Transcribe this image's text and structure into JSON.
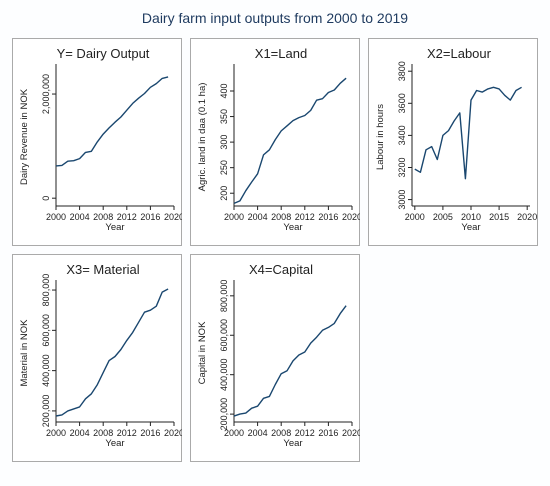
{
  "title": "Dairy farm input outputs from 2000 to 2019",
  "chart_data": [
    {
      "type": "line",
      "title": "Y= Dairy Output",
      "xlabel": "Year",
      "ylabel": "Dairy Revenue in NOK",
      "xlim": [
        2000,
        2020
      ],
      "ylim": [
        -150000,
        2500000
      ],
      "xticks": [
        "2000",
        "2004",
        "2008",
        "2012",
        "2016",
        "2020"
      ],
      "yticks": [
        {
          "v": 0,
          "label": "0"
        },
        {
          "v": 2000000,
          "label": "2,000,000"
        }
      ],
      "x": [
        2000,
        2001,
        2002,
        2003,
        2004,
        2005,
        2006,
        2007,
        2008,
        2009,
        2010,
        2011,
        2012,
        2013,
        2014,
        2015,
        2016,
        2017,
        2018,
        2019
      ],
      "values": [
        620000,
        630000,
        710000,
        720000,
        760000,
        880000,
        900000,
        1080000,
        1230000,
        1350000,
        1460000,
        1560000,
        1690000,
        1820000,
        1920000,
        2010000,
        2130000,
        2200000,
        2300000,
        2330000
      ]
    },
    {
      "type": "line",
      "title": "X1=Land",
      "xlabel": "Year",
      "ylabel": "Agric. land in daa (0.1 ha)",
      "xlim": [
        2000,
        2020
      ],
      "ylim": [
        175,
        445
      ],
      "xticks": [
        "2000",
        "2004",
        "2008",
        "2012",
        "2016",
        "2020"
      ],
      "yticks": [
        {
          "v": 200,
          "label": "200"
        },
        {
          "v": 250,
          "label": "250"
        },
        {
          "v": 300,
          "label": "300"
        },
        {
          "v": 350,
          "label": "350"
        },
        {
          "v": 400,
          "label": "400"
        }
      ],
      "x": [
        2000,
        2001,
        2002,
        2003,
        2004,
        2005,
        2006,
        2007,
        2008,
        2009,
        2010,
        2011,
        2012,
        2013,
        2014,
        2015,
        2016,
        2017,
        2018,
        2019
      ],
      "values": [
        180,
        185,
        205,
        222,
        238,
        275,
        285,
        305,
        322,
        332,
        342,
        348,
        352,
        362,
        382,
        385,
        397,
        402,
        415,
        425
      ]
    },
    {
      "type": "line",
      "title": "X2=Labour",
      "xlabel": "Year",
      "ylabel": "Labour in hours",
      "xlim": [
        1999.5,
        2020.5
      ],
      "ylim": [
        2960,
        3820
      ],
      "xticks": [
        "2000",
        "2005",
        "2010",
        "2015",
        "2020"
      ],
      "yticks": [
        {
          "v": 3000,
          "label": "3000"
        },
        {
          "v": 3200,
          "label": "3200"
        },
        {
          "v": 3400,
          "label": "3400"
        },
        {
          "v": 3600,
          "label": "3600"
        },
        {
          "v": 3800,
          "label": "3800"
        }
      ],
      "x": [
        2000,
        2001,
        2002,
        2003,
        2004,
        2005,
        2006,
        2007,
        2008,
        2009,
        2010,
        2011,
        2012,
        2013,
        2014,
        2015,
        2016,
        2017,
        2018,
        2019
      ],
      "values": [
        3190,
        3170,
        3310,
        3330,
        3250,
        3400,
        3430,
        3490,
        3540,
        3130,
        3620,
        3680,
        3670,
        3690,
        3700,
        3690,
        3650,
        3620,
        3680,
        3700
      ]
    },
    {
      "type": "line",
      "title": "X3= Material",
      "xlabel": "Year",
      "ylabel": "Material in NOK",
      "xlim": [
        2000,
        2020
      ],
      "ylim": [
        145000,
        830000
      ],
      "xticks": [
        "2000",
        "2004",
        "2008",
        "2012",
        "2016",
        "2020"
      ],
      "yticks": [
        {
          "v": 200000,
          "label": "200,000"
        },
        {
          "v": 400000,
          "label": "400,000"
        },
        {
          "v": 600000,
          "label": "600,000"
        },
        {
          "v": 800000,
          "label": "800,000"
        }
      ],
      "x": [
        2000,
        2001,
        2002,
        2003,
        2004,
        2005,
        2006,
        2007,
        2008,
        2009,
        2010,
        2011,
        2012,
        2013,
        2014,
        2015,
        2016,
        2017,
        2018,
        2019
      ],
      "values": [
        175000,
        180000,
        200000,
        210000,
        220000,
        260000,
        285000,
        330000,
        390000,
        450000,
        470000,
        505000,
        550000,
        590000,
        640000,
        690000,
        700000,
        720000,
        790000,
        805000
      ]
    },
    {
      "type": "line",
      "title": "X4=Capital",
      "xlabel": "Year",
      "ylabel": "Capital in NOK",
      "xlim": [
        2000,
        2020
      ],
      "ylim": [
        160000,
        860000
      ],
      "xticks": [
        "2000",
        "2004",
        "2008",
        "2012",
        "2016",
        "2020"
      ],
      "yticks": [
        {
          "v": 200000,
          "label": "200,000"
        },
        {
          "v": 400000,
          "label": "400,000"
        },
        {
          "v": 600000,
          "label": "600,000"
        },
        {
          "v": 800000,
          "label": "800,000"
        }
      ],
      "x": [
        2000,
        2001,
        2002,
        2003,
        2004,
        2005,
        2006,
        2007,
        2008,
        2009,
        2010,
        2011,
        2012,
        2013,
        2014,
        2015,
        2016,
        2017,
        2018,
        2019
      ],
      "values": [
        190000,
        200000,
        205000,
        230000,
        240000,
        280000,
        290000,
        350000,
        405000,
        420000,
        470000,
        500000,
        515000,
        560000,
        590000,
        625000,
        640000,
        660000,
        710000,
        750000
      ]
    }
  ]
}
